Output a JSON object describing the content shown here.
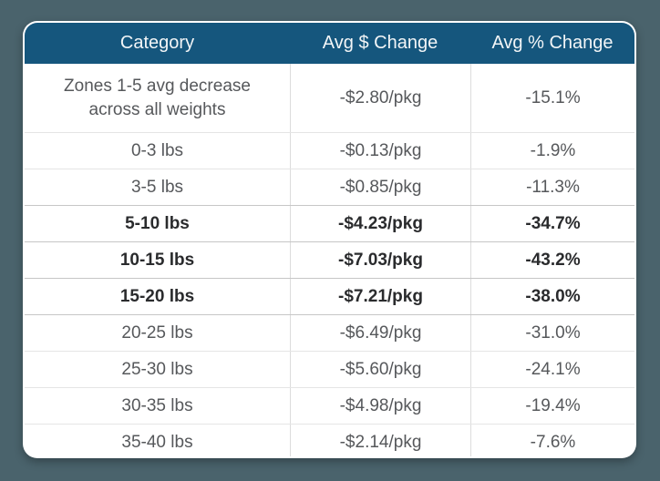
{
  "page": {
    "background_color": "#4a636c"
  },
  "card": {
    "header_background": "#15567d",
    "header_text_color": "#f2f5f7",
    "body_text_color": "#56585b",
    "emphasis_text_color": "#2a2b2d"
  },
  "table": {
    "columns": [
      {
        "label": "Category"
      },
      {
        "label": "Avg $ Change"
      },
      {
        "label": "Avg % Change"
      }
    ],
    "rows": [
      {
        "category": "Zones 1-5 avg decrease across all weights",
        "avg_dollar_change": "-$2.80/pkg",
        "avg_percent_change": "-15.1%",
        "bold": false
      },
      {
        "category": "0-3 lbs",
        "avg_dollar_change": "-$0.13/pkg",
        "avg_percent_change": "-1.9%",
        "bold": false
      },
      {
        "category": "3-5 lbs",
        "avg_dollar_change": "-$0.85/pkg",
        "avg_percent_change": "-11.3%",
        "bold": false
      },
      {
        "category": "5-10 lbs",
        "avg_dollar_change": "-$4.23/pkg",
        "avg_percent_change": "-34.7%",
        "bold": true
      },
      {
        "category": "10-15 lbs",
        "avg_dollar_change": "-$7.03/pkg",
        "avg_percent_change": "-43.2%",
        "bold": true
      },
      {
        "category": "15-20 lbs",
        "avg_dollar_change": "-$7.21/pkg",
        "avg_percent_change": "-38.0%",
        "bold": true
      },
      {
        "category": "20-25 lbs",
        "avg_dollar_change": "-$6.49/pkg",
        "avg_percent_change": "-31.0%",
        "bold": false
      },
      {
        "category": "25-30 lbs",
        "avg_dollar_change": "-$5.60/pkg",
        "avg_percent_change": "-24.1%",
        "bold": false
      },
      {
        "category": "30-35 lbs",
        "avg_dollar_change": "-$4.98/pkg",
        "avg_percent_change": "-19.4%",
        "bold": false
      },
      {
        "category": "35-40 lbs",
        "avg_dollar_change": "-$2.14/pkg",
        "avg_percent_change": "-7.6%",
        "bold": false
      }
    ]
  },
  "chart_data": {
    "type": "table",
    "title": "",
    "columns": [
      "Category",
      "Avg $ Change",
      "Avg % Change"
    ],
    "categories": [
      "Zones 1-5 avg decrease across all weights",
      "0-3 lbs",
      "3-5 lbs",
      "5-10 lbs",
      "10-15 lbs",
      "15-20 lbs",
      "20-25 lbs",
      "25-30 lbs",
      "30-35 lbs",
      "35-40 lbs"
    ],
    "series": [
      {
        "name": "Avg $ Change per pkg",
        "values": [
          -2.8,
          -0.13,
          -0.85,
          -4.23,
          -7.03,
          -7.21,
          -6.49,
          -5.6,
          -4.98,
          -2.14
        ]
      },
      {
        "name": "Avg % Change",
        "values": [
          -15.1,
          -1.9,
          -11.3,
          -34.7,
          -43.2,
          -38.0,
          -31.0,
          -24.1,
          -19.4,
          -7.6
        ]
      }
    ],
    "emphasized_rows": [
      "5-10 lbs",
      "10-15 lbs",
      "15-20 lbs"
    ],
    "layout": {
      "header_background": "#15567d",
      "grid": true
    }
  }
}
